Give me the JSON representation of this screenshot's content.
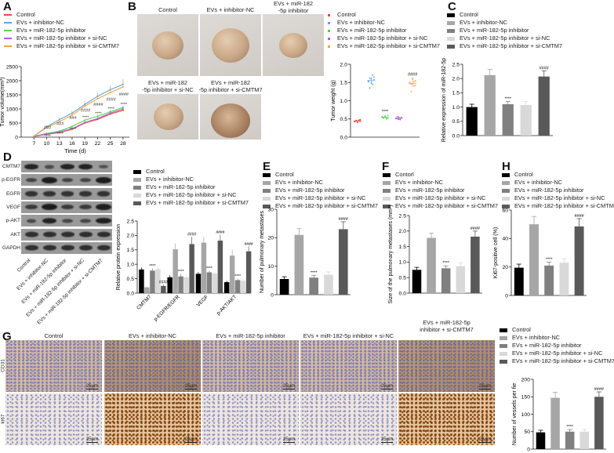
{
  "groups": [
    "Control",
    "EVs + inhibitor-NC",
    "EVs + miR-182-5p inhibitor",
    "EVs + miR-182-5p inhibitor + si-NC",
    "EVs + miR-182-5p inhibitor + si-CMTM7"
  ],
  "panel_labels": {
    "A": "A",
    "B": "B",
    "C": "C",
    "D": "D",
    "E": "E",
    "F": "F",
    "G": "G",
    "H": "H"
  },
  "colors": {
    "line": [
      "#e8473c",
      "#5aa3e0",
      "#4cd64c",
      "#b25cd8",
      "#f5a341"
    ],
    "bar": [
      "#000000",
      "#a6a6a6",
      "#808080",
      "#d9d9d9",
      "#595959"
    ]
  },
  "legend_F": [
    "Contorl",
    "EVs + inhibitor-NC",
    "EVs + miR-182-5p inhibitor",
    "EVs + miR-182-5p inhibitor + si-NC",
    "EVs + miR-182-5p inhibitor + si-CMTM7"
  ],
  "photos_B": {
    "titles": [
      "Control",
      "EVs + inhibitor-NC",
      "EVs + miR-182\n-5p inhibitor",
      "EVs + miR-182\n-5p inhibitor + si-NC",
      "EVs + miR-182\n-5p inhibitor + si-CMTM7"
    ]
  },
  "western_blot_D": {
    "proteins": [
      "CMTM7",
      "p-EGFR",
      "EGFR",
      "VEGF",
      "p-AKT",
      "AKT",
      "GAPDH"
    ],
    "lanes": [
      "Control",
      "EVs + inhibitor-NC",
      "EVs + miR-182-5p inhibitor",
      "EVs + miR-182-5p inhibitor + si-NC",
      "EVs + miR-182-5p inhibitor + si-CMTM7"
    ],
    "band_intensity": [
      [
        0.9,
        0.4,
        0.9,
        0.9,
        0.35
      ],
      [
        0.5,
        1.0,
        0.5,
        0.5,
        1.0
      ],
      [
        0.7,
        0.7,
        0.7,
        0.7,
        0.7
      ],
      [
        0.6,
        1.0,
        0.6,
        0.6,
        0.95
      ],
      [
        0.4,
        0.9,
        0.45,
        0.45,
        0.95
      ],
      [
        0.75,
        0.75,
        0.75,
        0.75,
        0.75
      ],
      [
        0.75,
        0.75,
        0.75,
        0.75,
        0.75
      ]
    ]
  },
  "ihc_G": {
    "titles": [
      "Control",
      "EVs + inhibitor-NC",
      "EVs + miR-182-5p inhibitor",
      "EVs + miR-182-5p inhibitor + si-NC",
      "EVs + miR-182-5p\ninhibitor + si-CMTM7"
    ],
    "rows": [
      "CD31",
      "ki67"
    ],
    "scale_bar": "25μm"
  },
  "chart_data": [
    {
      "id": "A",
      "type": "line",
      "xlabel": "Time (d)",
      "ylabel": "Tumor volume(mm³)",
      "x": [
        7,
        10,
        13,
        16,
        19,
        22,
        25,
        28
      ],
      "xlim": [
        4,
        29.5
      ],
      "ylim": [
        0,
        2500
      ],
      "yticks": [
        0,
        500,
        1000,
        1500,
        2000,
        2500
      ],
      "legend": "top",
      "series": [
        {
          "name": "Control",
          "values": [
            30,
            100,
            160,
            280,
            500,
            630,
            820,
            950
          ],
          "errors": [
            10,
            20,
            30,
            40,
            50,
            60,
            70,
            80
          ]
        },
        {
          "name": "EVs + inhibitor-NC",
          "values": [
            30,
            370,
            620,
            850,
            1160,
            1450,
            1680,
            1870
          ],
          "errors": [
            10,
            40,
            70,
            90,
            110,
            130,
            160,
            180
          ]
        },
        {
          "name": "EVs + miR-182-5p inhibitor",
          "values": [
            30,
            130,
            210,
            380,
            600,
            740,
            900,
            1050
          ],
          "errors": [
            10,
            20,
            30,
            40,
            50,
            60,
            70,
            80
          ]
        },
        {
          "name": "EVs + miR-182-5p inhibitor + si-NC",
          "values": [
            30,
            110,
            180,
            300,
            520,
            660,
            850,
            1000
          ],
          "errors": [
            10,
            20,
            30,
            40,
            50,
            60,
            70,
            80
          ]
        },
        {
          "name": "EVs + miR-182-5p inhibitor + si-CMTM7",
          "values": [
            30,
            340,
            550,
            780,
            1100,
            1360,
            1580,
            1780
          ],
          "errors": [
            10,
            40,
            70,
            90,
            110,
            130,
            160,
            180
          ]
        }
      ],
      "annotations_vs_si_nc": [
        "",
        "###",
        "###",
        "###",
        "####",
        "####",
        "####",
        "####"
      ],
      "annotations_vs_inhibitor_nc": [
        "",
        "****",
        "****",
        "****",
        "****",
        "****",
        "****",
        "****"
      ]
    },
    {
      "id": "B",
      "type": "scatter",
      "ylabel": "Tumor weight (g)",
      "ylim": [
        0,
        2.0
      ],
      "yticks": [
        0.0,
        0.5,
        1.0,
        1.5,
        2.0
      ],
      "legend": "top",
      "categories": [
        "Control",
        "EVs + inhibitor-NC",
        "EVs + miR-182-5p inhibitor",
        "EVs + miR-182-5p inhibitor + si-NC",
        "EVs + miR-182-5p inhibitor + si-CMTM7"
      ],
      "points": [
        [
          0.42,
          0.45,
          0.4,
          0.47,
          0.44,
          0.43,
          0.46,
          0.41,
          0.45,
          0.48
        ],
        [
          1.55,
          1.62,
          1.48,
          1.7,
          1.58,
          1.52,
          1.35,
          1.6,
          1.45,
          1.65
        ],
        [
          0.55,
          0.52,
          0.58,
          0.5,
          0.6,
          0.56,
          0.53,
          0.57,
          0.54,
          0.51
        ],
        [
          0.52,
          0.5,
          0.55,
          0.48,
          0.53,
          0.51,
          0.56,
          0.49,
          0.52,
          0.54
        ],
        [
          1.5,
          1.45,
          1.62,
          1.4,
          1.55,
          1.48,
          1.25,
          1.58,
          1.52,
          1.42
        ]
      ],
      "annotations": [
        "",
        "",
        "****",
        "",
        "####"
      ]
    },
    {
      "id": "C",
      "type": "bar",
      "ylabel": "Relative expression of miR-182-5p",
      "ylim": [
        0,
        2.5
      ],
      "yticks": [
        0.0,
        0.5,
        1.0,
        1.5,
        2.0,
        2.5
      ],
      "legend": "top",
      "categories": [
        "Control",
        "EVs + inhibitor-NC",
        "EVs + miR-182-5p inhibitor",
        "EVs + miR-182-5p inhibitor + si-NC",
        "EVs + miR-182-5p inhibitor + si-CMTM7"
      ],
      "values": [
        1.0,
        2.12,
        1.1,
        1.07,
        2.07
      ],
      "errors": [
        0.1,
        0.2,
        0.1,
        0.12,
        0.2
      ],
      "annotations": [
        "",
        "",
        "****",
        "",
        "####"
      ]
    },
    {
      "id": "D",
      "type": "bar",
      "ylabel": "Relative protein expression",
      "ylim": [
        0,
        2.5
      ],
      "yticks": [
        0.0,
        0.5,
        1.0,
        1.5,
        2.0,
        2.5
      ],
      "legend": "top",
      "categories": [
        "CMTM7",
        "p-EGFR/EGFR",
        "VEGF",
        "p-AKT/AKT"
      ],
      "series": [
        {
          "name": "Control",
          "values": [
            0.82,
            0.55,
            0.67,
            0.38
          ],
          "errors": [
            0.07,
            0.07,
            0.06,
            0.05
          ]
        },
        {
          "name": "EVs + inhibitor-NC",
          "values": [
            0.2,
            1.52,
            1.75,
            1.3
          ],
          "errors": [
            0.03,
            0.2,
            0.2,
            0.2
          ]
        },
        {
          "name": "EVs + miR-182-5p inhibitor",
          "values": [
            0.78,
            0.58,
            0.72,
            0.45
          ],
          "errors": [
            0.08,
            0.08,
            0.06,
            0.05
          ]
        },
        {
          "name": "EVs + miR-182-5p inhibitor + si-NC",
          "values": [
            0.83,
            0.55,
            0.68,
            0.43
          ],
          "errors": [
            0.08,
            0.07,
            0.06,
            0.05
          ]
        },
        {
          "name": "EVs + miR-182-5p inhibitor + si-CMTM7",
          "values": [
            0.25,
            1.7,
            1.82,
            1.45
          ],
          "errors": [
            0.05,
            0.25,
            0.2,
            0.17
          ]
        }
      ],
      "annotations": [
        [
          "",
          "",
          "****",
          "",
          "####"
        ],
        [
          "",
          "",
          "****",
          "",
          "####"
        ],
        [
          "",
          "",
          "****",
          "",
          "####"
        ],
        [
          "",
          "",
          "****",
          "",
          "####"
        ]
      ]
    },
    {
      "id": "E",
      "type": "bar",
      "ylabel": "Number of pulmonary metastases",
      "ylim": [
        0,
        30
      ],
      "yticks": [
        0,
        10,
        20,
        30
      ],
      "legend": "top",
      "categories": [
        "Control",
        "EVs + inhibitor-NC",
        "EVs + miR-182-5p inhibitor",
        "EVs + miR-182-5p inhibitor + si-NC",
        "EVs + miR-182-5p inhibitor + si-CMTM7"
      ],
      "values": [
        5.5,
        21,
        6,
        7,
        23
      ],
      "errors": [
        0.8,
        2.2,
        0.8,
        1.0,
        2.6
      ],
      "annotations": [
        "",
        "",
        "****",
        "",
        "####"
      ]
    },
    {
      "id": "F",
      "type": "bar",
      "ylabel": "Size of the pulmonary metastases (mm²)",
      "ylim": [
        0,
        2.5
      ],
      "yticks": [
        0.0,
        0.5,
        1.0,
        1.5,
        2.0,
        2.5
      ],
      "legend": "top",
      "categories": [
        "Contorl",
        "EVs + inhibitor-NC",
        "EVs + miR-182-5p inhibitor",
        "EVs + miR-182-5p inhibitor + si-NC",
        "EVs + miR-182-5p inhibitor + si-CMTM7"
      ],
      "values": [
        0.75,
        1.78,
        0.8,
        0.87,
        1.82
      ],
      "errors": [
        0.08,
        0.15,
        0.08,
        0.1,
        0.18
      ],
      "annotations": [
        "",
        "",
        "****",
        "",
        "####"
      ]
    },
    {
      "id": "H",
      "type": "bar",
      "ylabel": "Ki67-positive cell (%)",
      "ylim": [
        0,
        60
      ],
      "yticks": [
        0,
        20,
        40,
        60
      ],
      "legend": "top",
      "categories": [
        "Control",
        "EVs + inhibitor-NC",
        "EVs + miR-182-5p inhibitor",
        "EVs + miR-182-5p inhibitor + si-NC",
        "EVs + miR-182-5p inhibitor + si-CMTM7"
      ],
      "values": [
        19.5,
        50,
        21,
        23,
        48.5
      ],
      "errors": [
        2.5,
        5.5,
        2.5,
        2.8,
        5.5
      ],
      "annotations": [
        "",
        "",
        "****",
        "",
        "####"
      ]
    },
    {
      "id": "G",
      "type": "bar",
      "ylabel": "Number of vessels per fie",
      "ylim": [
        0,
        200
      ],
      "yticks": [
        0,
        50,
        100,
        150,
        200
      ],
      "legend": "top",
      "categories": [
        "Control",
        "EVs + inhibitor-NC",
        "EVs + miR-182-5p inhibitor",
        "EVs + miR-182-5p inhibitor + si-NC",
        "EVs + miR-182-5p inhibitor + si-CMTM7"
      ],
      "values": [
        48,
        147,
        50,
        50,
        150
      ],
      "errors": [
        6,
        16,
        6,
        6,
        14
      ],
      "annotations": [
        "",
        "",
        "****",
        "",
        "####"
      ]
    }
  ]
}
